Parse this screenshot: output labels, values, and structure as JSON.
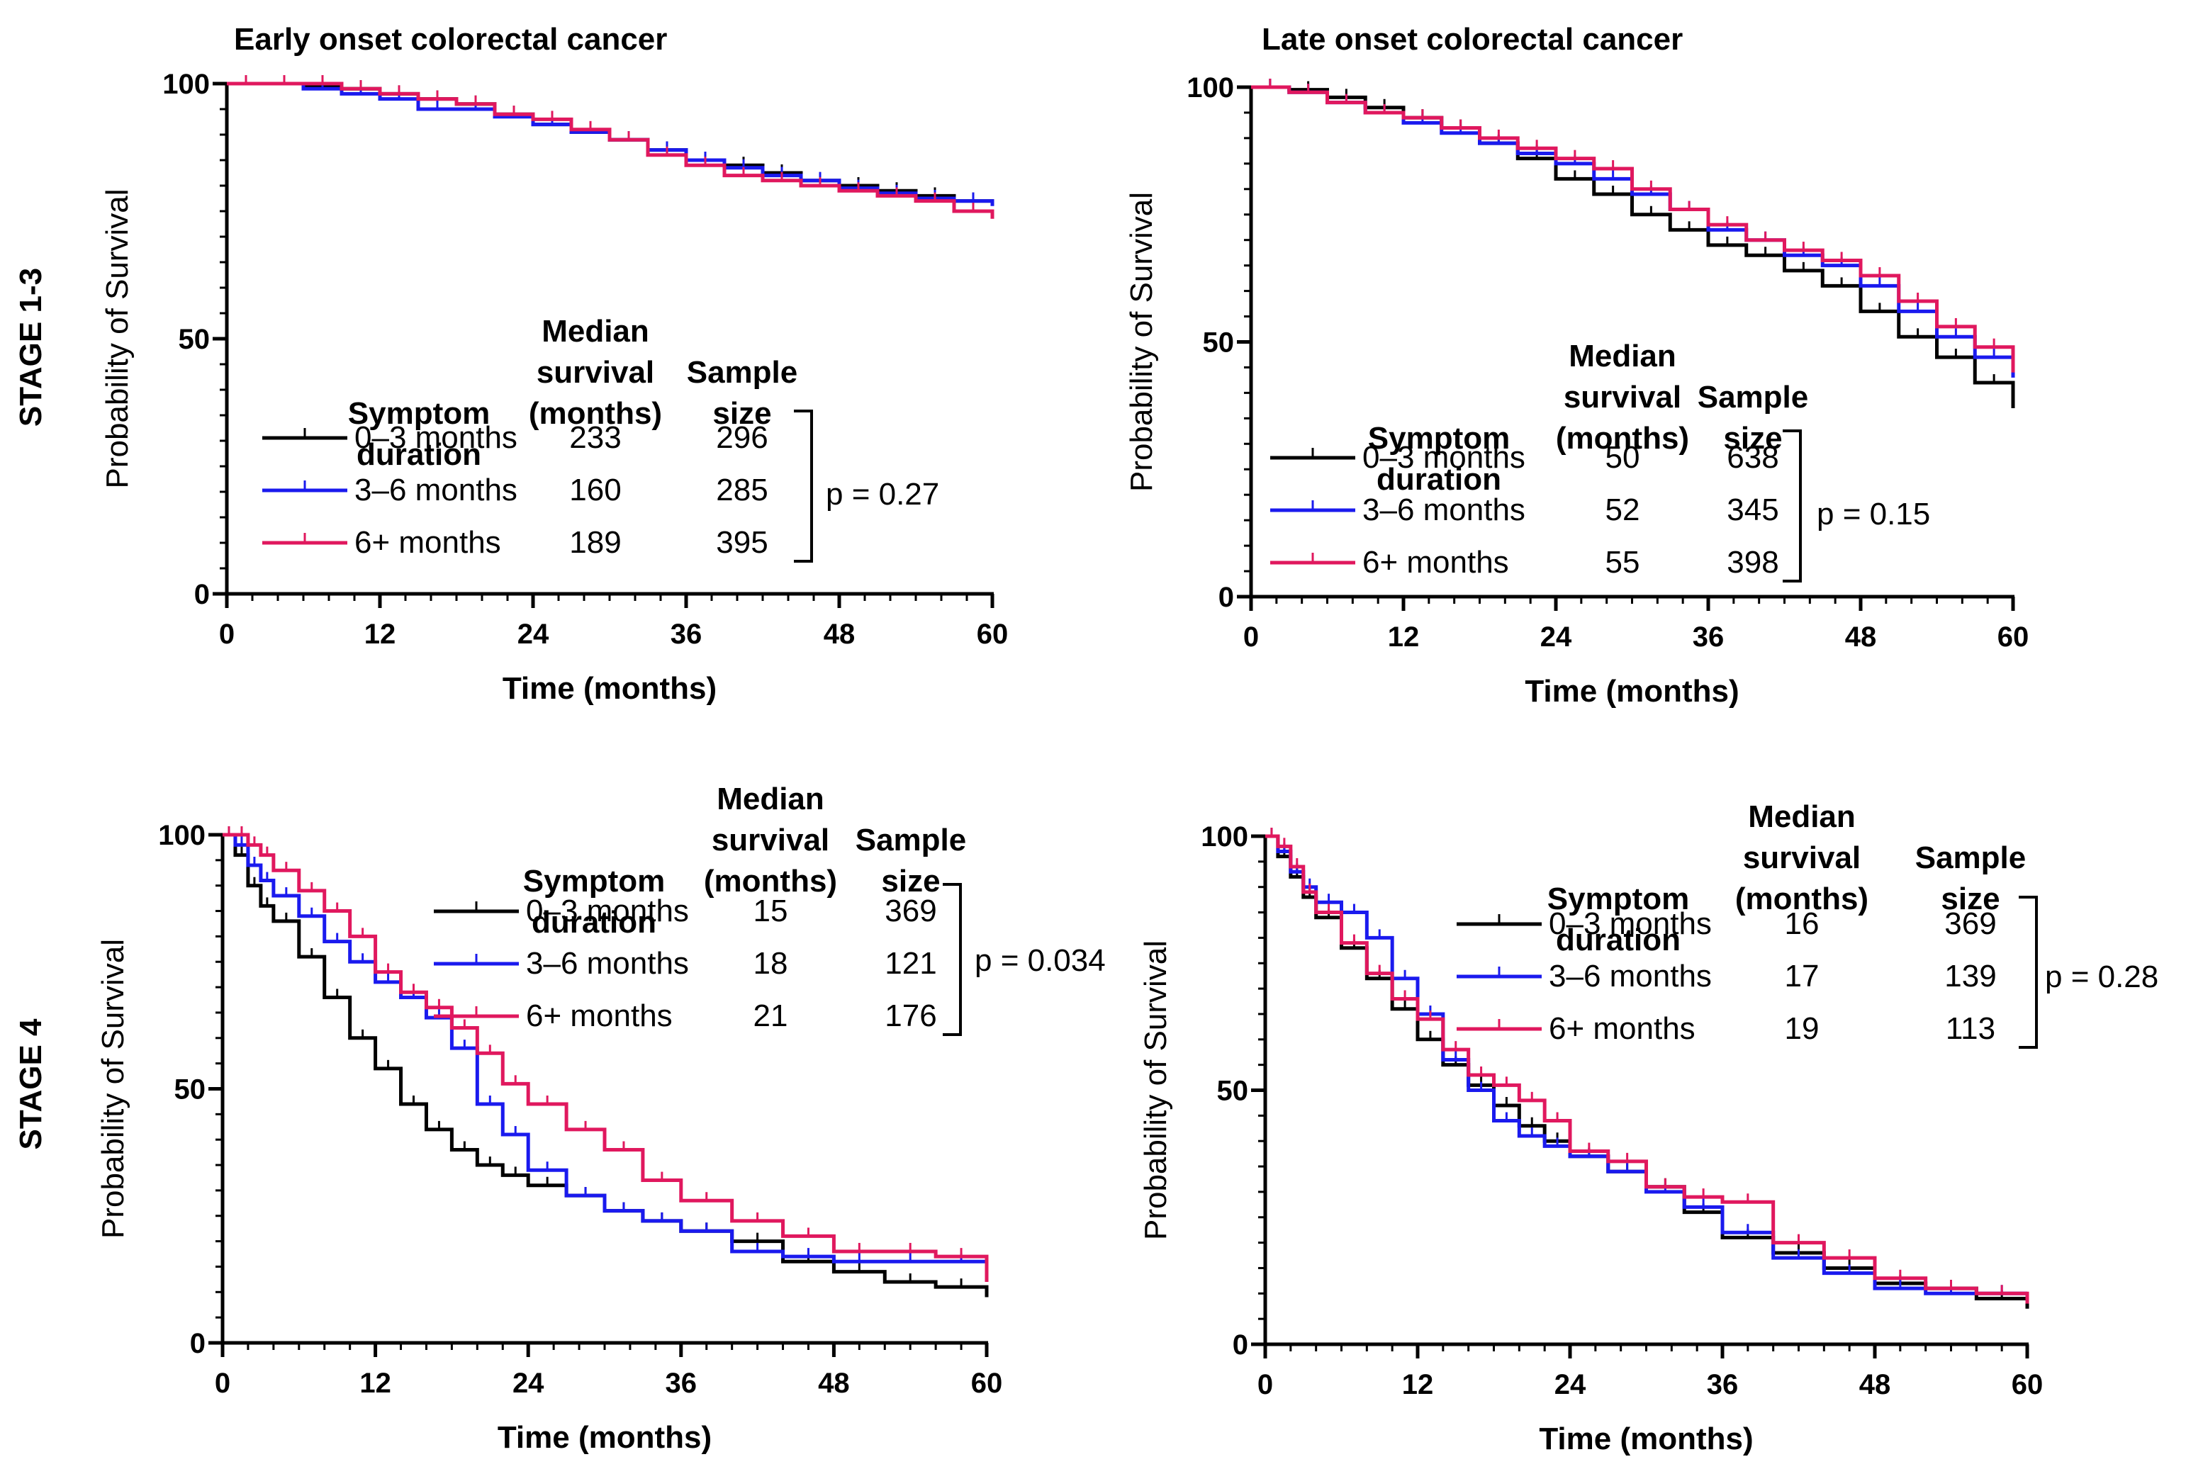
{
  "row_labels": [
    "STAGE 1-3",
    "STAGE 4"
  ],
  "colors": {
    "0-3": "#000000",
    "3-6": "#1a1aee",
    "6+": "#e0185e"
  },
  "legend_headers": {
    "symptom": [
      "Symptom",
      "duration"
    ],
    "median": [
      "Median",
      "survival",
      "(months)"
    ],
    "sample": [
      "Sample",
      "size"
    ]
  },
  "chart_data": [
    {
      "type": "line",
      "title": "Early onset colorectal cancer",
      "xlabel": "Time (months)",
      "ylabel": "Probability of Survival",
      "xlim": [
        0,
        60
      ],
      "ylim": [
        0,
        100
      ],
      "xticks": [
        0,
        12,
        24,
        36,
        48,
        60
      ],
      "yticks": [
        0,
        50,
        100
      ],
      "p_value": "p = 0.27",
      "series": [
        {
          "name": "0–3 months",
          "color": "#000000",
          "median": "233",
          "n": "296",
          "x": [
            0,
            3,
            6,
            9,
            12,
            15,
            18,
            21,
            24,
            27,
            30,
            33,
            36,
            39,
            42,
            45,
            48,
            51,
            54,
            57,
            60
          ],
          "y": [
            100,
            100,
            99.5,
            99,
            98,
            97,
            96,
            94,
            92,
            90.5,
            89,
            87,
            85,
            84,
            82.5,
            81,
            80,
            79,
            78,
            77,
            76.5
          ]
        },
        {
          "name": "3–6 months",
          "color": "#1a1aee",
          "median": "160",
          "n": "285",
          "x": [
            0,
            3,
            6,
            9,
            12,
            15,
            18,
            21,
            24,
            27,
            30,
            33,
            36,
            39,
            42,
            45,
            48,
            51,
            54,
            57,
            60
          ],
          "y": [
            100,
            100,
            99,
            98,
            97,
            95,
            95,
            93.5,
            92,
            90.5,
            89,
            87,
            85,
            83.5,
            82,
            81,
            79.5,
            78.5,
            77.5,
            77,
            76
          ]
        },
        {
          "name": "6+ months",
          "color": "#e0185e",
          "median": "189",
          "n": "395",
          "x": [
            0,
            3,
            6,
            9,
            12,
            15,
            18,
            21,
            24,
            27,
            30,
            33,
            36,
            39,
            42,
            45,
            48,
            51,
            54,
            57,
            60
          ],
          "y": [
            100,
            100,
            100,
            99,
            98,
            97,
            96,
            94,
            93,
            91,
            89,
            86,
            84,
            82,
            81,
            80,
            79,
            78,
            77,
            75,
            73.5
          ]
        }
      ]
    },
    {
      "type": "line",
      "title": "Late onset colorectal cancer",
      "xlabel": "Time (months)",
      "ylabel": "Probability of Survival",
      "xlim": [
        0,
        60
      ],
      "ylim": [
        0,
        100
      ],
      "xticks": [
        0,
        12,
        24,
        36,
        48,
        60
      ],
      "yticks": [
        0,
        50,
        100
      ],
      "p_value": "p = 0.15",
      "series": [
        {
          "name": "0–3 months",
          "color": "#000000",
          "median": "50",
          "n": "638",
          "x": [
            0,
            3,
            6,
            9,
            12,
            15,
            18,
            21,
            24,
            27,
            30,
            33,
            36,
            39,
            42,
            45,
            48,
            51,
            54,
            57,
            60
          ],
          "y": [
            100,
            99.5,
            98,
            96,
            94,
            92,
            89,
            86,
            82,
            79,
            75,
            72,
            69,
            67,
            64,
            61,
            56,
            51,
            47,
            42,
            37
          ]
        },
        {
          "name": "3–6 months",
          "color": "#1a1aee",
          "median": "52",
          "n": "345",
          "x": [
            0,
            3,
            6,
            9,
            12,
            15,
            18,
            21,
            24,
            27,
            30,
            33,
            36,
            39,
            42,
            45,
            48,
            51,
            54,
            57,
            60
          ],
          "y": [
            100,
            99,
            97,
            95,
            93,
            91,
            89,
            87,
            85,
            82,
            79,
            76,
            72,
            70,
            67,
            65,
            61,
            56,
            51,
            47,
            43
          ]
        },
        {
          "name": "6+ months",
          "color": "#e0185e",
          "median": "55",
          "n": "398",
          "x": [
            0,
            3,
            6,
            9,
            12,
            15,
            18,
            21,
            24,
            27,
            30,
            33,
            36,
            39,
            42,
            45,
            48,
            51,
            54,
            57,
            60
          ],
          "y": [
            100,
            99,
            97,
            95,
            94,
            92,
            90,
            88,
            86,
            84,
            80,
            76,
            73,
            70,
            68,
            66,
            63,
            58,
            53,
            49,
            44
          ]
        }
      ]
    },
    {
      "type": "line",
      "title": "",
      "xlabel": "Time (months)",
      "ylabel": "Probability of Survival",
      "xlim": [
        0,
        60
      ],
      "ylim": [
        0,
        100
      ],
      "xticks": [
        0,
        12,
        24,
        36,
        48,
        60
      ],
      "yticks": [
        0,
        50,
        100
      ],
      "p_value": "p = 0.034",
      "series": [
        {
          "name": "0–3 months",
          "color": "#000000",
          "median": "15",
          "n": "369",
          "x": [
            0,
            1,
            2,
            3,
            4,
            6,
            8,
            10,
            12,
            14,
            16,
            18,
            20,
            22,
            24,
            27,
            30,
            33,
            36,
            40,
            44,
            48,
            52,
            56,
            60
          ],
          "y": [
            100,
            96,
            90,
            86,
            83,
            76,
            68,
            60,
            54,
            47,
            42,
            38,
            35,
            33,
            31,
            29,
            26,
            24,
            22,
            20,
            16,
            14,
            12,
            11,
            9
          ]
        },
        {
          "name": "3–6 months",
          "color": "#1a1aee",
          "median": "18",
          "n": "121",
          "x": [
            0,
            1,
            2,
            3,
            4,
            6,
            8,
            10,
            12,
            14,
            16,
            18,
            20,
            22,
            24,
            27,
            30,
            33,
            36,
            40,
            44,
            48,
            52,
            56,
            60
          ],
          "y": [
            100,
            98,
            94,
            91,
            88,
            84,
            79,
            75,
            71,
            68,
            64,
            58,
            47,
            41,
            34,
            29,
            26,
            24,
            22,
            18,
            17,
            16,
            16,
            16,
            16
          ]
        },
        {
          "name": "6+ months",
          "color": "#e0185e",
          "median": "21",
          "n": "176",
          "x": [
            0,
            1,
            2,
            3,
            4,
            6,
            8,
            10,
            12,
            14,
            16,
            18,
            20,
            22,
            24,
            27,
            30,
            33,
            36,
            40,
            44,
            48,
            52,
            56,
            60
          ],
          "y": [
            100,
            100,
            98,
            96,
            93,
            89,
            85,
            80,
            73,
            69,
            66,
            62,
            57,
            51,
            47,
            42,
            38,
            32,
            28,
            24,
            21,
            18,
            18,
            17,
            12
          ]
        }
      ]
    },
    {
      "type": "line",
      "title": "",
      "xlabel": "Time (months)",
      "ylabel": "Probability of Survival",
      "xlim": [
        0,
        60
      ],
      "ylim": [
        0,
        100
      ],
      "xticks": [
        0,
        12,
        24,
        36,
        48,
        60
      ],
      "yticks": [
        0,
        50,
        100
      ],
      "p_value": "p = 0.28",
      "series": [
        {
          "name": "0–3 months",
          "color": "#000000",
          "median": "16",
          "n": "369",
          "x": [
            0,
            1,
            2,
            3,
            4,
            6,
            8,
            10,
            12,
            14,
            16,
            18,
            20,
            22,
            24,
            27,
            30,
            33,
            36,
            40,
            44,
            48,
            52,
            56,
            60
          ],
          "y": [
            100,
            96,
            92,
            88,
            84,
            78,
            72,
            66,
            60,
            55,
            51,
            47,
            43,
            40,
            37,
            34,
            31,
            26,
            21,
            18,
            15,
            12,
            11,
            9,
            7
          ]
        },
        {
          "name": "3–6 months",
          "color": "#1a1aee",
          "median": "17",
          "n": "139",
          "x": [
            0,
            1,
            2,
            3,
            4,
            6,
            8,
            10,
            12,
            14,
            16,
            18,
            20,
            22,
            24,
            27,
            30,
            33,
            36,
            40,
            44,
            48,
            52,
            56,
            60
          ],
          "y": [
            100,
            97,
            93,
            90,
            87,
            85,
            80,
            72,
            65,
            56,
            50,
            44,
            41,
            39,
            37,
            34,
            30,
            27,
            22,
            17,
            14,
            11,
            10,
            10,
            10
          ]
        },
        {
          "name": "6+ months",
          "color": "#e0185e",
          "median": "19",
          "n": "113",
          "x": [
            0,
            1,
            2,
            3,
            4,
            6,
            8,
            10,
            12,
            14,
            16,
            18,
            20,
            22,
            24,
            27,
            30,
            33,
            36,
            40,
            44,
            48,
            52,
            56,
            60
          ],
          "y": [
            100,
            98,
            94,
            89,
            85,
            79,
            73,
            68,
            64,
            58,
            53,
            51,
            48,
            44,
            38,
            36,
            31,
            29,
            28,
            20,
            17,
            13,
            11,
            10,
            8
          ]
        }
      ]
    }
  ]
}
